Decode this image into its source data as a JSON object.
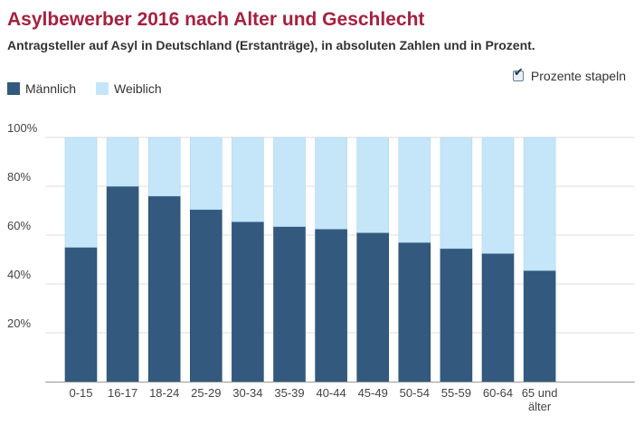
{
  "header": {
    "title": "Asylbewerber 2016 nach Alter und Geschlecht",
    "subtitle": "Antragsteller auf Asyl in Deutschland (Erstanträge), in absoluten Zahlen und in Prozent."
  },
  "controls": {
    "stack_label": "Prozente stapeln",
    "stack_checked": true
  },
  "chart_data": {
    "type": "bar",
    "stacked": true,
    "categories": [
      "0-15",
      "16-17",
      "18-24",
      "25-29",
      "30-34",
      "35-39",
      "40-44",
      "45-49",
      "50-54",
      "55-59",
      "60-64",
      "65 und älter"
    ],
    "series": [
      {
        "name": "Männlich",
        "color": "#335a7e",
        "values": [
          55,
          80,
          76,
          70.5,
          65.5,
          63.5,
          62.5,
          61,
          57,
          54.5,
          52.5,
          45.5
        ]
      },
      {
        "name": "Weiblich",
        "color": "#c5e6f9",
        "values": [
          45,
          20,
          24,
          29.5,
          34.5,
          36.5,
          37.5,
          39,
          43,
          45.5,
          47.5,
          54.5
        ]
      }
    ],
    "ylim": [
      0,
      100
    ],
    "yticks": [
      "20%",
      "40%",
      "60%",
      "80%",
      "100%"
    ],
    "grid": true,
    "legend": "top-left"
  }
}
